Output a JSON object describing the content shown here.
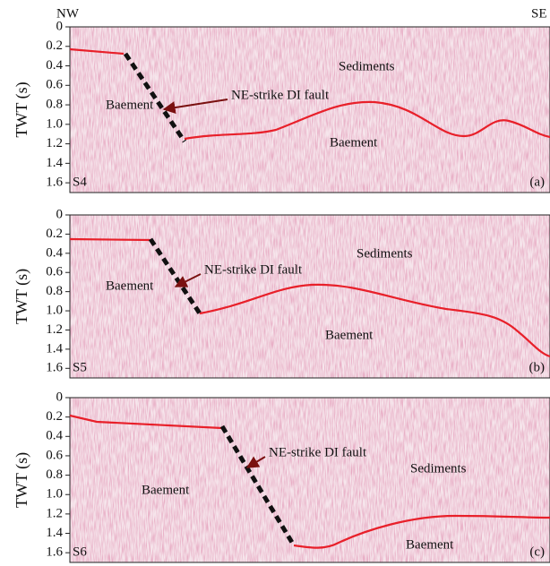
{
  "header": {
    "left": "NW",
    "right": "SE"
  },
  "panels": [
    {
      "y_label": "TWT (s)",
      "ylim": [
        0,
        1.7
      ],
      "yticks": [
        0,
        0.2,
        0.4,
        0.6,
        0.8,
        {
          "value": 1,
          "label": "1.0"
        },
        1.2,
        1.4,
        1.6
      ],
      "section": "S4",
      "tag": "(a)",
      "sediments": "Sediments",
      "basement_left": "Baement",
      "basement_right": "Baement",
      "fault": "NE-strike DI fault"
    },
    {
      "y_label": "TWT (s)",
      "ylim": [
        0,
        1.7
      ],
      "yticks": [
        0,
        0.2,
        0.4,
        0.6,
        0.8,
        {
          "value": 1,
          "label": "1.0"
        },
        1.2,
        1.4,
        1.6
      ],
      "section": "S5",
      "tag": "(b)",
      "sediments": "Sediments",
      "basement_left": "Baement",
      "basement_right": "Baement",
      "fault": "NE-strike DI fault"
    },
    {
      "y_label": "TWT (s)",
      "ylim": [
        0,
        1.7
      ],
      "yticks": [
        0,
        0.2,
        0.4,
        0.6,
        0.8,
        {
          "value": 1,
          "label": "1.0"
        },
        1.2,
        1.4,
        1.6
      ],
      "section": "S6",
      "tag": "(c)",
      "sediments": "Sediments",
      "basement_left": "Baement",
      "basement_right": "Baement",
      "fault": "NE-strike DI fault"
    }
  ]
}
